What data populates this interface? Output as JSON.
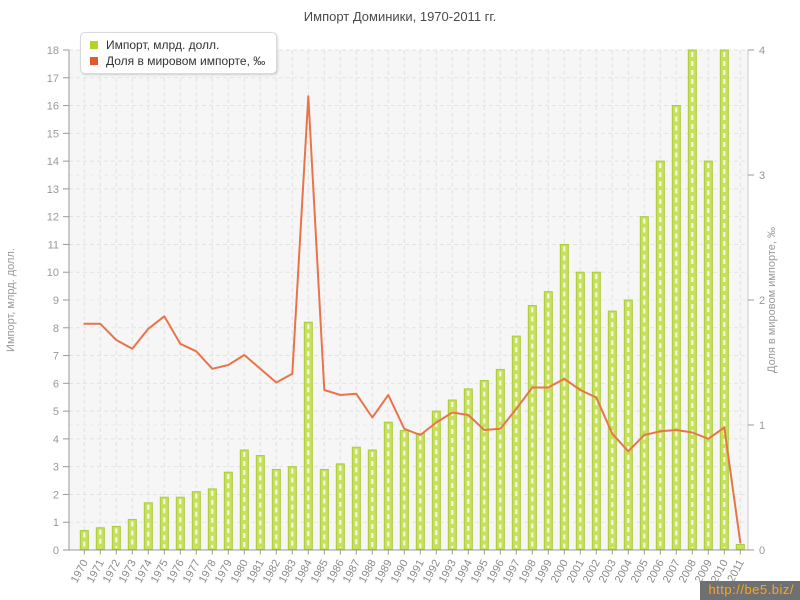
{
  "title": "Импорт Доминики, 1970-2011 гг.",
  "legend": {
    "items": [
      {
        "label": "Импорт, млрд. долл.",
        "color": "#b5d327"
      },
      {
        "label": "Доля в мировом импорте, ‰",
        "color": "#e2592c"
      }
    ]
  },
  "watermark": {
    "text": "http://be5.biz/"
  },
  "chart_data": {
    "type": "bar",
    "title": "Импорт Доминики, 1970-2011 гг.",
    "categories": [
      "1970",
      "1971",
      "1972",
      "1973",
      "1974",
      "1975",
      "1976",
      "1977",
      "1978",
      "1979",
      "1980",
      "1981",
      "1982",
      "1983",
      "1984",
      "1985",
      "1986",
      "1987",
      "1988",
      "1989",
      "1990",
      "1991",
      "1992",
      "1993",
      "1994",
      "1995",
      "1996",
      "1997",
      "1998",
      "1999",
      "2000",
      "2001",
      "2002",
      "2003",
      "2004",
      "2005",
      "2006",
      "2007",
      "2008",
      "2009",
      "2010",
      "2011"
    ],
    "series": [
      {
        "name": "Импорт, млрд. долл.",
        "type": "bar",
        "axis": "left",
        "color": "#c8e05e",
        "border_color": "#a8cc3a",
        "values": [
          0.7,
          0.8,
          0.85,
          1.1,
          1.7,
          1.9,
          1.9,
          2.1,
          2.2,
          2.8,
          3.6,
          3.4,
          2.9,
          3.0,
          8.2,
          2.9,
          3.1,
          3.7,
          3.6,
          4.6,
          4.3,
          4.2,
          5.0,
          5.4,
          5.8,
          6.1,
          6.5,
          7.7,
          8.8,
          9.3,
          11.0,
          10.0,
          10.0,
          8.6,
          9.0,
          12.0,
          14.0,
          16.0,
          18.0,
          14.0,
          18.0,
          0.2
        ]
      },
      {
        "name": "Доля в мировом импорте, ‰",
        "type": "line",
        "axis": "right",
        "color": "#e8754a",
        "values": [
          1.81,
          1.81,
          1.68,
          1.61,
          1.77,
          1.87,
          1.65,
          1.59,
          1.45,
          1.48,
          1.56,
          1.45,
          1.34,
          1.41,
          3.63,
          1.28,
          1.24,
          1.25,
          1.06,
          1.24,
          0.97,
          0.92,
          1.02,
          1.1,
          1.08,
          0.96,
          0.97,
          1.13,
          1.3,
          1.3,
          1.37,
          1.28,
          1.22,
          0.93,
          0.79,
          0.92,
          0.95,
          0.96,
          0.94,
          0.89,
          0.98,
          0.06
        ]
      }
    ],
    "left_axis": {
      "label": "Импорт, млрд. долл.",
      "min": 0,
      "max": 18,
      "tick_step": 1
    },
    "right_axis": {
      "label": "Доля в мировом импорте, ‰",
      "min": 0,
      "max": 4,
      "tick_step": 1
    },
    "grid": true,
    "legend_position": "top-left",
    "xlabel": "",
    "ylabel": "Импорт, млрд. долл."
  }
}
